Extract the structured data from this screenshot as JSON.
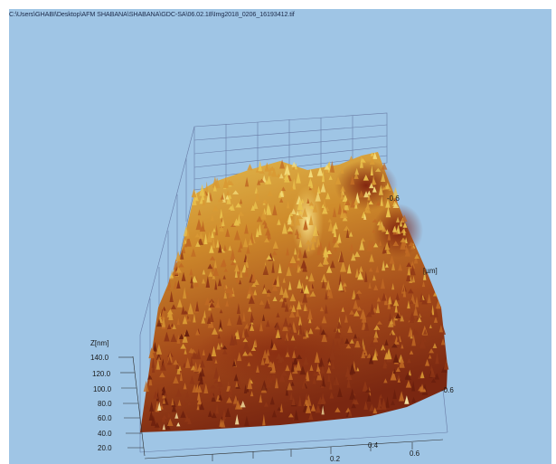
{
  "window": {
    "title": "C:\\Users\\GHABI\\Desktop\\AFM SHABANA\\SHABANA\\GDC-SA\\06.02.18\\Img2018_0206_16193412.tif"
  },
  "plot": {
    "z_axis": {
      "label": "Z[nm]",
      "ticks": [
        "140.0",
        "120.0",
        "100.0",
        "80.0",
        "60.0",
        "40.0",
        "20.0"
      ]
    },
    "x_axis": {
      "ticks": [
        "0.2",
        "0.4",
        "0.6"
      ]
    },
    "y_axis": {
      "label": "[µm]",
      "ticks": [
        "-0.6",
        "-0.6"
      ]
    }
  },
  "colors": {
    "background": "#9fc5e5",
    "surface_dark": "#6e1d0e",
    "surface_mid": "#b5561f",
    "surface_light": "#e7b33a",
    "grid": "#5f6f9a"
  }
}
